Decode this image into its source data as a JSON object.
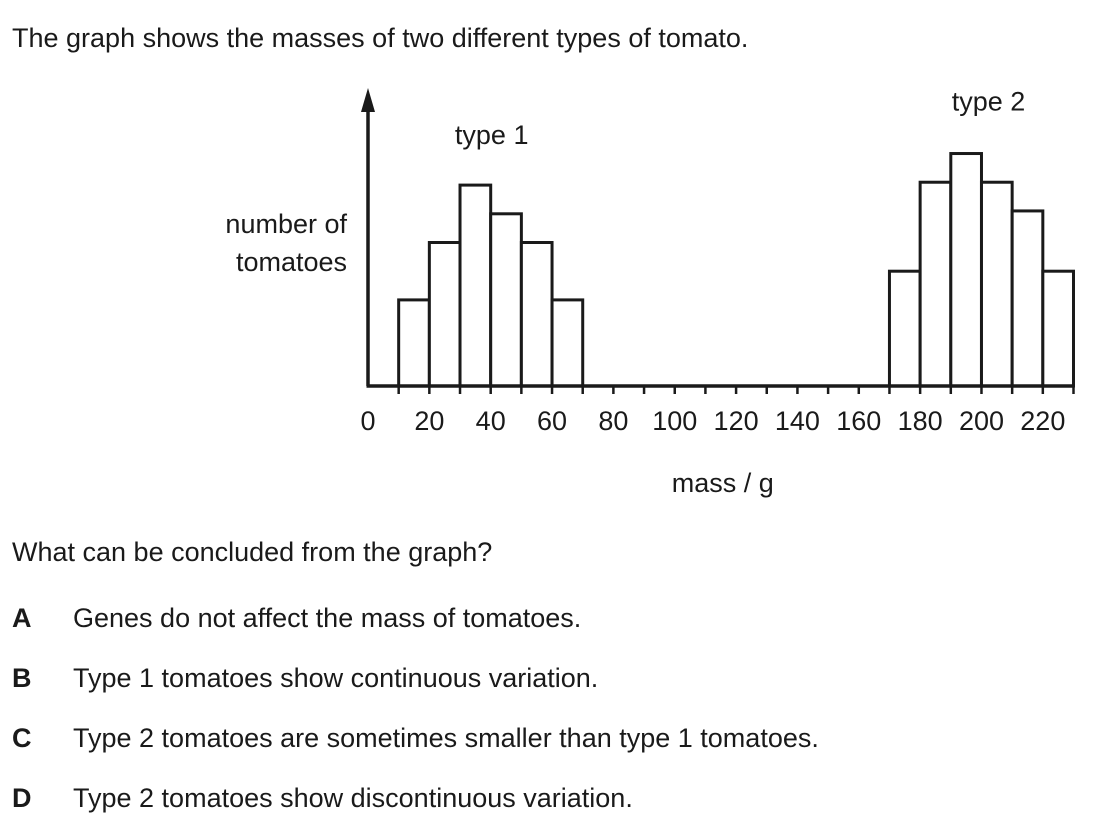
{
  "intro": "The graph shows the masses of two different types of tomato.",
  "question": "What can be concluded from the graph?",
  "options": [
    {
      "letter": "A",
      "text": "Genes do not affect the mass of tomatoes."
    },
    {
      "letter": "B",
      "text": "Type 1 tomatoes show continuous variation."
    },
    {
      "letter": "C",
      "text": "Type 2 tomatoes are sometimes smaller than type 1 tomatoes."
    },
    {
      "letter": "D",
      "text": "Type 2 tomatoes show discontinuous variation."
    }
  ],
  "chart_data": {
    "type": "bar",
    "xlabel": "mass / g",
    "ylabel_lines": [
      "number of",
      "tomatoes"
    ],
    "xlim": [
      0,
      230
    ],
    "ylim": [
      0,
      10
    ],
    "x_ticks": [
      0,
      20,
      40,
      60,
      80,
      100,
      120,
      140,
      160,
      180,
      200,
      220
    ],
    "minor_tick_step": 10,
    "grid": false,
    "series": [
      {
        "name": "type 1",
        "bins": [
          {
            "x0": 10,
            "x1": 20,
            "value": 3.0
          },
          {
            "x0": 20,
            "x1": 30,
            "value": 5.0
          },
          {
            "x0": 30,
            "x1": 40,
            "value": 7.0
          },
          {
            "x0": 40,
            "x1": 50,
            "value": 6.0
          },
          {
            "x0": 50,
            "x1": 60,
            "value": 5.0
          },
          {
            "x0": 60,
            "x1": 70,
            "value": 3.0
          }
        ]
      },
      {
        "name": "type 2",
        "bins": [
          {
            "x0": 170,
            "x1": 180,
            "value": 4.0
          },
          {
            "x0": 180,
            "x1": 190,
            "value": 7.1
          },
          {
            "x0": 190,
            "x1": 200,
            "value": 8.1
          },
          {
            "x0": 200,
            "x1": 210,
            "value": 7.1
          },
          {
            "x0": 210,
            "x1": 220,
            "value": 6.1
          },
          {
            "x0": 220,
            "x1": 230,
            "value": 4.0
          }
        ]
      }
    ]
  }
}
